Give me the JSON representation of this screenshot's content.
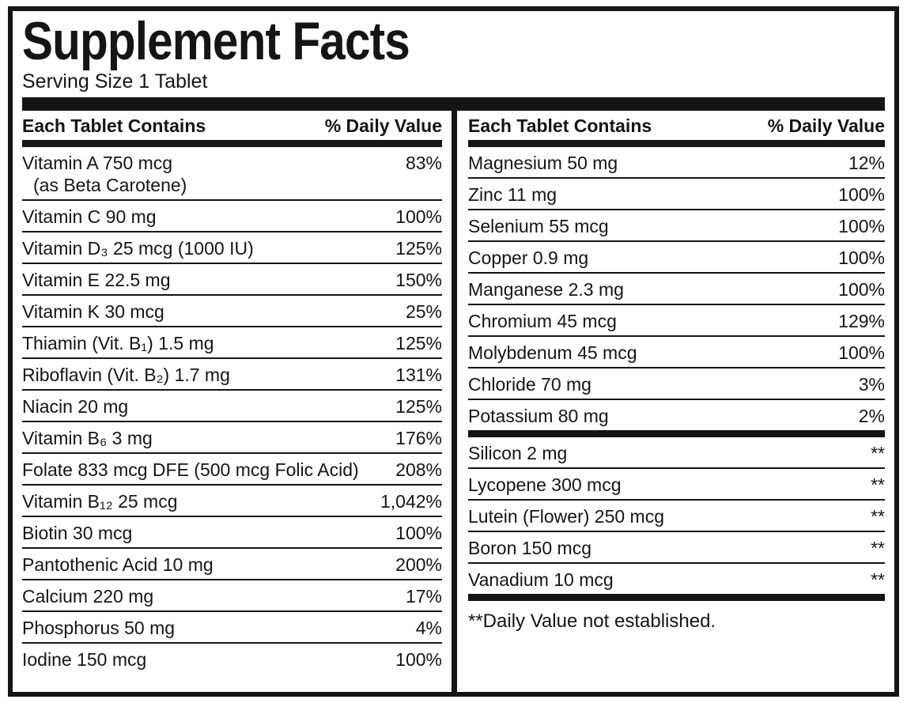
{
  "colors": {
    "ink": "#151515",
    "paper": "#ffffff"
  },
  "header": {
    "title": "Supplement Facts",
    "serving": "Serving Size 1 Tablet"
  },
  "left_table": {
    "col_name": "Each Tablet Contains",
    "col_value": "% Daily Value",
    "rows": [
      {
        "name": "Vitamin A 750 mcg",
        "name2": "(as Beta Carotene)",
        "value": "83%"
      },
      {
        "name": "Vitamin C 90 mg",
        "value": "100%"
      },
      {
        "name": "Vitamin D₃ 25 mcg (1000 IU)",
        "value": "125%"
      },
      {
        "name": "Vitamin E 22.5 mg",
        "value": "150%"
      },
      {
        "name": "Vitamin K 30 mcg",
        "value": "25%"
      },
      {
        "name": "Thiamin (Vit. B₁) 1.5 mg",
        "value": "125%"
      },
      {
        "name": "Riboflavin (Vit. B₂) 1.7 mg",
        "value": "131%"
      },
      {
        "name": "Niacin 20 mg",
        "value": "125%"
      },
      {
        "name": "Vitamin B₆ 3 mg",
        "value": "176%"
      },
      {
        "name": "Folate 833 mcg DFE (500 mcg Folic Acid)",
        "value": "208%"
      },
      {
        "name": "Vitamin B₁₂ 25 mcg",
        "value": "1,042%"
      },
      {
        "name": "Biotin 30 mcg",
        "value": "100%"
      },
      {
        "name": "Pantothenic Acid 10 mg",
        "value": "200%"
      },
      {
        "name": "Calcium 220 mg",
        "value": "17%"
      },
      {
        "name": "Phosphorus 50 mg",
        "value": "4%"
      },
      {
        "name": "Iodine 150 mcg",
        "value": "100%"
      }
    ]
  },
  "right_table": {
    "col_name": "Each Tablet Contains",
    "col_value": "% Daily Value",
    "groups": [
      {
        "rows": [
          {
            "name": "Magnesium 50 mg",
            "value": "12%"
          },
          {
            "name": "Zinc 11 mg",
            "value": "100%"
          },
          {
            "name": "Selenium 55 mcg",
            "value": "100%"
          },
          {
            "name": "Copper 0.9 mg",
            "value": "100%"
          },
          {
            "name": "Manganese 2.3 mg",
            "value": "100%"
          },
          {
            "name": "Chromium 45 mcg",
            "value": "129%"
          },
          {
            "name": "Molybdenum 45 mcg",
            "value": "100%"
          },
          {
            "name": "Chloride 70 mg",
            "value": "3%"
          },
          {
            "name": "Potassium 80 mg",
            "value": "2%"
          }
        ]
      },
      {
        "rows": [
          {
            "name": "Silicon 2 mg",
            "value": "**"
          },
          {
            "name": "Lycopene 300 mcg",
            "value": "**"
          },
          {
            "name": "Lutein (Flower) 250 mcg",
            "value": "**"
          },
          {
            "name": "Boron 150 mcg",
            "value": "**"
          },
          {
            "name": "Vanadium 10 mcg",
            "value": "**"
          }
        ]
      }
    ],
    "footnote": "**Daily Value not established."
  }
}
